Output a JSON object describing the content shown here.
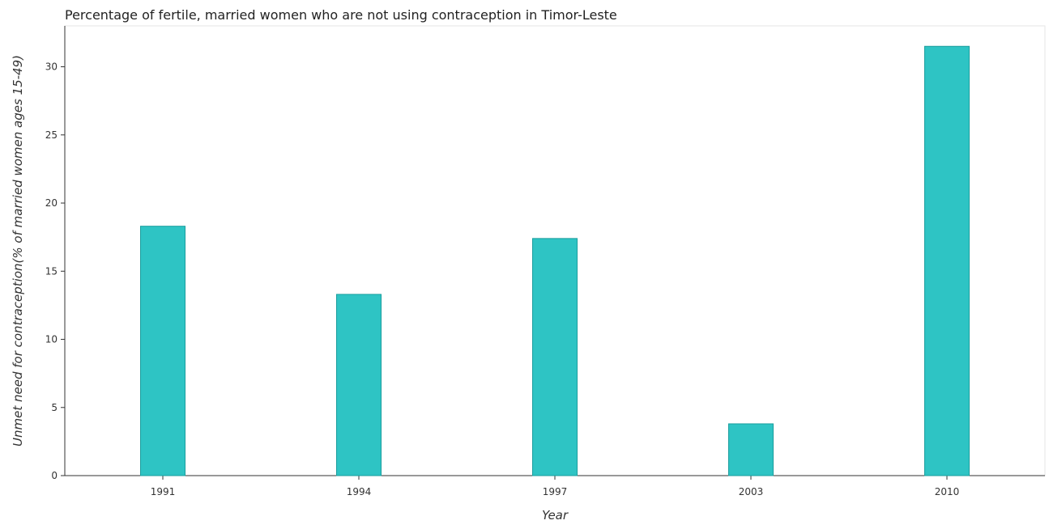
{
  "chart_data": {
    "type": "bar",
    "title": "Percentage of fertile, married women who are not using contraception in Timor-Leste",
    "xlabel": "Year",
    "ylabel": "Unmet need for contraception(% of married women ages 15-49)",
    "categories": [
      "1991",
      "1994",
      "1997",
      "2003",
      "2010"
    ],
    "values": [
      18.3,
      13.3,
      17.4,
      3.8,
      31.5
    ],
    "ylim": [
      0,
      33
    ],
    "yticks": [
      0,
      5,
      10,
      15,
      20,
      25,
      30
    ],
    "grid": false,
    "legend": "none",
    "bar_color": "#2ec4c4",
    "bar_edge_color": "#1a9e9e"
  }
}
